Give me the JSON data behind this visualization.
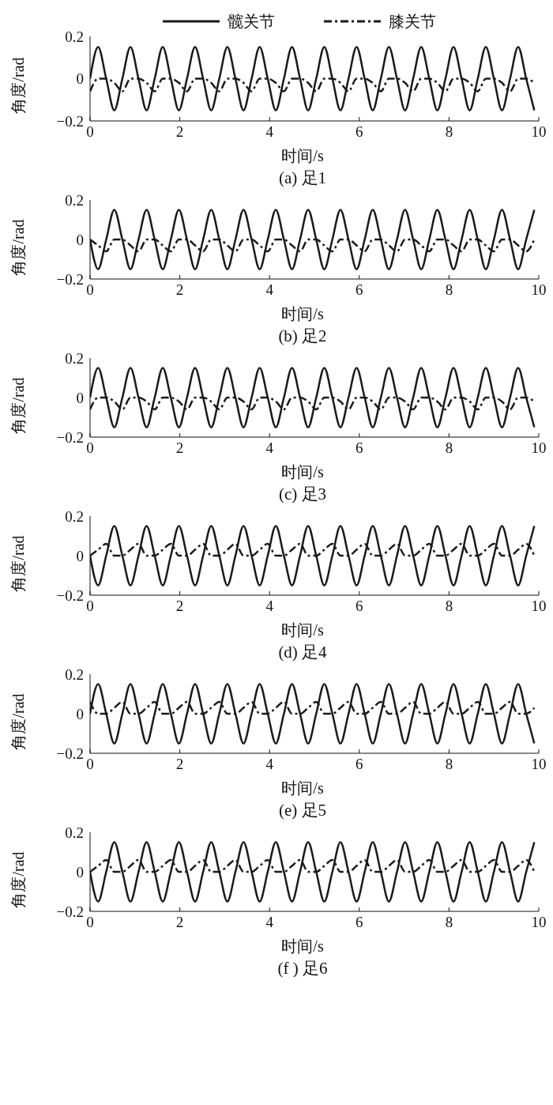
{
  "chart_data": [
    {
      "type": "line",
      "title": "(a)  足1",
      "xlabel": "时间/s",
      "ylabel": "角度/rad",
      "xlim": [
        0,
        10
      ],
      "xticks": [
        0,
        2,
        4,
        6,
        8,
        10
      ],
      "ylim": [
        -0.2,
        0.2
      ],
      "yticks": [
        -0.2,
        0,
        0.2
      ],
      "grid": false,
      "legend": "top",
      "marker": "none",
      "x": [
        0,
        0.18,
        0.36,
        0.54,
        0.72,
        0.9,
        1.08,
        1.26,
        1.44,
        1.62,
        1.8,
        1.98,
        2.16,
        2.34,
        2.52,
        2.7,
        2.88,
        3.06,
        3.24,
        3.42,
        3.6,
        3.78,
        3.96,
        4.14,
        4.32,
        4.5,
        4.68,
        4.86,
        5.04,
        5.22,
        5.4,
        5.58,
        5.76,
        5.94,
        6.12,
        6.3,
        6.48,
        6.66,
        6.84,
        7.02,
        7.2,
        7.38,
        7.56,
        7.74,
        7.92,
        8.1,
        8.28,
        8.46,
        8.64,
        8.82,
        9,
        9.18,
        9.36,
        9.54,
        9.72,
        9.9
      ],
      "series": [
        {
          "name": "髋关节",
          "color": "#1a1a1a",
          "line_style": "solid",
          "values": [
            0,
            0.15,
            0,
            -0.15,
            0,
            0.15,
            0,
            -0.15,
            0,
            0.15,
            0,
            -0.15,
            0,
            0.15,
            0,
            -0.15,
            0,
            0.15,
            0,
            -0.15,
            0,
            0.15,
            0,
            -0.15,
            0,
            0.15,
            0,
            -0.15,
            0,
            0.15,
            0,
            -0.15,
            0,
            0.15,
            0,
            -0.15,
            0,
            0.15,
            0,
            -0.15,
            0,
            0.15,
            0,
            -0.15,
            0,
            0.15,
            0,
            -0.15,
            0,
            0.15,
            0,
            -0.15,
            0,
            0.15,
            0,
            -0.15
          ]
        },
        {
          "name": "膝关节",
          "color": "#1a1a1a",
          "line_style": "dashed",
          "values": [
            -0.06,
            0,
            0,
            -0.02,
            -0.06,
            0,
            0,
            -0.02,
            -0.06,
            0,
            0,
            -0.02,
            -0.06,
            0,
            0,
            -0.02,
            -0.06,
            0,
            0,
            -0.02,
            -0.06,
            0,
            0,
            -0.02,
            -0.06,
            0,
            0,
            -0.02,
            -0.06,
            0,
            0,
            -0.02,
            -0.06,
            0,
            0,
            -0.02,
            -0.06,
            0,
            0,
            -0.02,
            -0.06,
            0,
            0,
            -0.02,
            -0.06,
            0,
            0,
            -0.02,
            -0.06,
            0,
            0,
            -0.02,
            -0.06,
            0,
            0,
            -0.02
          ]
        }
      ]
    },
    {
      "type": "line",
      "title": "(b)  足2",
      "xlabel": "时间/s",
      "ylabel": "角度/rad",
      "xlim": [
        0,
        10
      ],
      "xticks": [
        0,
        2,
        4,
        6,
        8,
        10
      ],
      "ylim": [
        -0.2,
        0.2
      ],
      "yticks": [
        -0.2,
        0,
        0.2
      ],
      "grid": false,
      "legend": false,
      "marker": "none",
      "x": [
        0,
        0.18,
        0.36,
        0.54,
        0.72,
        0.9,
        1.08,
        1.26,
        1.44,
        1.62,
        1.8,
        1.98,
        2.16,
        2.34,
        2.52,
        2.7,
        2.88,
        3.06,
        3.24,
        3.42,
        3.6,
        3.78,
        3.96,
        4.14,
        4.32,
        4.5,
        4.68,
        4.86,
        5.04,
        5.22,
        5.4,
        5.58,
        5.76,
        5.94,
        6.12,
        6.3,
        6.48,
        6.66,
        6.84,
        7.02,
        7.2,
        7.38,
        7.56,
        7.74,
        7.92,
        8.1,
        8.28,
        8.46,
        8.64,
        8.82,
        9,
        9.18,
        9.36,
        9.54,
        9.72,
        9.9
      ],
      "series": [
        {
          "color": "#1a1a1a",
          "line_style": "solid",
          "values": [
            0,
            -0.15,
            0,
            0.15,
            0,
            -0.15,
            0,
            0.15,
            0,
            -0.15,
            0,
            0.15,
            0,
            -0.15,
            0,
            0.15,
            0,
            -0.15,
            0,
            0.15,
            0,
            -0.15,
            0,
            0.15,
            0,
            -0.15,
            0,
            0.15,
            0,
            -0.15,
            0,
            0.15,
            0,
            -0.15,
            0,
            0.15,
            0,
            -0.15,
            0,
            0.15,
            0,
            -0.15,
            0,
            0.15,
            0,
            -0.15,
            0,
            0.15,
            0,
            -0.15,
            0,
            0.15,
            0,
            -0.15,
            0,
            0.15
          ]
        },
        {
          "color": "#1a1a1a",
          "line_style": "dashed",
          "values": [
            0,
            -0.03,
            -0.06,
            0,
            0,
            -0.03,
            -0.06,
            0,
            0,
            -0.03,
            -0.06,
            0,
            0,
            -0.03,
            -0.06,
            0,
            0,
            -0.03,
            -0.06,
            0,
            0,
            -0.03,
            -0.06,
            0,
            0,
            -0.03,
            -0.06,
            0,
            0,
            -0.03,
            -0.06,
            0,
            0,
            -0.03,
            -0.06,
            0,
            0,
            -0.03,
            -0.06,
            0,
            0,
            -0.03,
            -0.06,
            0,
            0,
            -0.03,
            -0.06,
            0,
            0,
            -0.03,
            -0.06,
            0,
            0,
            -0.03,
            -0.06,
            0
          ]
        }
      ]
    },
    {
      "type": "line",
      "title": "(c)  足3",
      "xlabel": "时间/s",
      "ylabel": "角度/rad",
      "xlim": [
        0,
        10
      ],
      "xticks": [
        0,
        2,
        4,
        6,
        8,
        10
      ],
      "ylim": [
        -0.2,
        0.2
      ],
      "yticks": [
        -0.2,
        0,
        0.2
      ],
      "grid": false,
      "legend": false,
      "marker": "none",
      "x": [
        0,
        0.18,
        0.36,
        0.54,
        0.72,
        0.9,
        1.08,
        1.26,
        1.44,
        1.62,
        1.8,
        1.98,
        2.16,
        2.34,
        2.52,
        2.7,
        2.88,
        3.06,
        3.24,
        3.42,
        3.6,
        3.78,
        3.96,
        4.14,
        4.32,
        4.5,
        4.68,
        4.86,
        5.04,
        5.22,
        5.4,
        5.58,
        5.76,
        5.94,
        6.12,
        6.3,
        6.48,
        6.66,
        6.84,
        7.02,
        7.2,
        7.38,
        7.56,
        7.74,
        7.92,
        8.1,
        8.28,
        8.46,
        8.64,
        8.82,
        9,
        9.18,
        9.36,
        9.54,
        9.72,
        9.9
      ],
      "series": [
        {
          "color": "#1a1a1a",
          "line_style": "solid",
          "values": [
            0,
            0.15,
            0,
            -0.15,
            0,
            0.15,
            0,
            -0.15,
            0,
            0.15,
            0,
            -0.15,
            0,
            0.15,
            0,
            -0.15,
            0,
            0.15,
            0,
            -0.15,
            0,
            0.15,
            0,
            -0.15,
            0,
            0.15,
            0,
            -0.15,
            0,
            0.15,
            0,
            -0.15,
            0,
            0.15,
            0,
            -0.15,
            0,
            0.15,
            0,
            -0.15,
            0,
            0.15,
            0,
            -0.15,
            0,
            0.15,
            0,
            -0.15,
            0,
            0.15,
            0,
            -0.15,
            0,
            0.15,
            0,
            -0.15
          ]
        },
        {
          "color": "#1a1a1a",
          "line_style": "dashed",
          "values": [
            -0.06,
            0,
            0,
            -0.02,
            -0.06,
            0,
            0,
            -0.02,
            -0.06,
            0,
            0,
            -0.02,
            -0.06,
            0,
            0,
            -0.02,
            -0.06,
            0,
            0,
            -0.02,
            -0.06,
            0,
            0,
            -0.02,
            -0.06,
            0,
            0,
            -0.02,
            -0.06,
            0,
            0,
            -0.02,
            -0.06,
            0,
            0,
            -0.02,
            -0.06,
            0,
            0,
            -0.02,
            -0.06,
            0,
            0,
            -0.02,
            -0.06,
            0,
            0,
            -0.02,
            -0.06,
            0,
            0,
            -0.02,
            -0.06,
            0,
            0,
            -0.02
          ]
        }
      ]
    },
    {
      "type": "line",
      "title": "(d)  足4",
      "xlabel": "时间/s",
      "ylabel": "角度/rad",
      "xlim": [
        0,
        10
      ],
      "xticks": [
        0,
        2,
        4,
        6,
        8,
        10
      ],
      "ylim": [
        -0.2,
        0.2
      ],
      "yticks": [
        -0.2,
        0,
        0.2
      ],
      "grid": false,
      "legend": false,
      "marker": "none",
      "x": [
        0,
        0.18,
        0.36,
        0.54,
        0.72,
        0.9,
        1.08,
        1.26,
        1.44,
        1.62,
        1.8,
        1.98,
        2.16,
        2.34,
        2.52,
        2.7,
        2.88,
        3.06,
        3.24,
        3.42,
        3.6,
        3.78,
        3.96,
        4.14,
        4.32,
        4.5,
        4.68,
        4.86,
        5.04,
        5.22,
        5.4,
        5.58,
        5.76,
        5.94,
        6.12,
        6.3,
        6.48,
        6.66,
        6.84,
        7.02,
        7.2,
        7.38,
        7.56,
        7.74,
        7.92,
        8.1,
        8.28,
        8.46,
        8.64,
        8.82,
        9,
        9.18,
        9.36,
        9.54,
        9.72,
        9.9
      ],
      "series": [
        {
          "color": "#1a1a1a",
          "line_style": "solid",
          "values": [
            0,
            -0.15,
            0,
            0.15,
            0,
            -0.15,
            0,
            0.15,
            0,
            -0.15,
            0,
            0.15,
            0,
            -0.15,
            0,
            0.15,
            0,
            -0.15,
            0,
            0.15,
            0,
            -0.15,
            0,
            0.15,
            0,
            -0.15,
            0,
            0.15,
            0,
            -0.15,
            0,
            0.15,
            0,
            -0.15,
            0,
            0.15,
            0,
            -0.15,
            0,
            0.15,
            0,
            -0.15,
            0,
            0.15,
            0,
            -0.15,
            0,
            0.15,
            0,
            -0.15,
            0,
            0.15,
            0,
            -0.15,
            0,
            0.15
          ]
        },
        {
          "color": "#1a1a1a",
          "line_style": "dashed",
          "values": [
            0,
            0.03,
            0.06,
            0,
            0,
            0.03,
            0.06,
            0,
            0,
            0.03,
            0.06,
            0,
            0,
            0.03,
            0.06,
            0,
            0,
            0.03,
            0.06,
            0,
            0,
            0.03,
            0.06,
            0,
            0,
            0.03,
            0.06,
            0,
            0,
            0.03,
            0.06,
            0,
            0,
            0.03,
            0.06,
            0,
            0,
            0.03,
            0.06,
            0,
            0,
            0.03,
            0.06,
            0,
            0,
            0.03,
            0.06,
            0,
            0,
            0.03,
            0.06,
            0,
            0,
            0.03,
            0.06,
            0
          ]
        }
      ]
    },
    {
      "type": "line",
      "title": "(e)  足5",
      "xlabel": "时间/s",
      "ylabel": "角度/rad",
      "xlim": [
        0,
        10
      ],
      "xticks": [
        0,
        2,
        4,
        6,
        8,
        10
      ],
      "ylim": [
        -0.2,
        0.2
      ],
      "yticks": [
        -0.2,
        0,
        0.2
      ],
      "grid": false,
      "legend": false,
      "marker": "none",
      "x": [
        0,
        0.18,
        0.36,
        0.54,
        0.72,
        0.9,
        1.08,
        1.26,
        1.44,
        1.62,
        1.8,
        1.98,
        2.16,
        2.34,
        2.52,
        2.7,
        2.88,
        3.06,
        3.24,
        3.42,
        3.6,
        3.78,
        3.96,
        4.14,
        4.32,
        4.5,
        4.68,
        4.86,
        5.04,
        5.22,
        5.4,
        5.58,
        5.76,
        5.94,
        6.12,
        6.3,
        6.48,
        6.66,
        6.84,
        7.02,
        7.2,
        7.38,
        7.56,
        7.74,
        7.92,
        8.1,
        8.28,
        8.46,
        8.64,
        8.82,
        9,
        9.18,
        9.36,
        9.54,
        9.72,
        9.9
      ],
      "series": [
        {
          "color": "#1a1a1a",
          "line_style": "solid",
          "values": [
            0,
            0.15,
            0,
            -0.15,
            0,
            0.15,
            0,
            -0.15,
            0,
            0.15,
            0,
            -0.15,
            0,
            0.15,
            0,
            -0.15,
            0,
            0.15,
            0,
            -0.15,
            0,
            0.15,
            0,
            -0.15,
            0,
            0.15,
            0,
            -0.15,
            0,
            0.15,
            0,
            -0.15,
            0,
            0.15,
            0,
            -0.15,
            0,
            0.15,
            0,
            -0.15,
            0,
            0.15,
            0,
            -0.15,
            0,
            0.15,
            0,
            -0.15,
            0,
            0.15,
            0,
            -0.15,
            0,
            0.15,
            0,
            -0.15
          ]
        },
        {
          "color": "#1a1a1a",
          "line_style": "dashed",
          "values": [
            0.06,
            0,
            0,
            0.03,
            0.06,
            0,
            0,
            0.03,
            0.06,
            0,
            0,
            0.03,
            0.06,
            0,
            0,
            0.03,
            0.06,
            0,
            0,
            0.03,
            0.06,
            0,
            0,
            0.03,
            0.06,
            0,
            0,
            0.03,
            0.06,
            0,
            0,
            0.03,
            0.06,
            0,
            0,
            0.03,
            0.06,
            0,
            0,
            0.03,
            0.06,
            0,
            0,
            0.03,
            0.06,
            0,
            0,
            0.03,
            0.06,
            0,
            0,
            0.03,
            0.06,
            0,
            0,
            0.03
          ]
        }
      ]
    },
    {
      "type": "line",
      "title": "(f )  足6",
      "xlabel": "时间/s",
      "ylabel": "角度/rad",
      "xlim": [
        0,
        10
      ],
      "xticks": [
        0,
        2,
        4,
        6,
        8,
        10
      ],
      "ylim": [
        -0.2,
        0.2
      ],
      "yticks": [
        -0.2,
        0,
        0.2
      ],
      "grid": false,
      "legend": false,
      "marker": "none",
      "x": [
        0,
        0.18,
        0.36,
        0.54,
        0.72,
        0.9,
        1.08,
        1.26,
        1.44,
        1.62,
        1.8,
        1.98,
        2.16,
        2.34,
        2.52,
        2.7,
        2.88,
        3.06,
        3.24,
        3.42,
        3.6,
        3.78,
        3.96,
        4.14,
        4.32,
        4.5,
        4.68,
        4.86,
        5.04,
        5.22,
        5.4,
        5.58,
        5.76,
        5.94,
        6.12,
        6.3,
        6.48,
        6.66,
        6.84,
        7.02,
        7.2,
        7.38,
        7.56,
        7.74,
        7.92,
        8.1,
        8.28,
        8.46,
        8.64,
        8.82,
        9,
        9.18,
        9.36,
        9.54,
        9.72,
        9.9
      ],
      "series": [
        {
          "color": "#1a1a1a",
          "line_style": "solid",
          "values": [
            0,
            -0.15,
            0,
            0.15,
            0,
            -0.15,
            0,
            0.15,
            0,
            -0.15,
            0,
            0.15,
            0,
            -0.15,
            0,
            0.15,
            0,
            -0.15,
            0,
            0.15,
            0,
            -0.15,
            0,
            0.15,
            0,
            -0.15,
            0,
            0.15,
            0,
            -0.15,
            0,
            0.15,
            0,
            -0.15,
            0,
            0.15,
            0,
            -0.15,
            0,
            0.15,
            0,
            -0.15,
            0,
            0.15,
            0,
            -0.15,
            0,
            0.15,
            0,
            -0.15,
            0,
            0.15,
            0,
            -0.15,
            0,
            0.15
          ]
        },
        {
          "color": "#1a1a1a",
          "line_style": "dashed",
          "values": [
            0,
            0.03,
            0.06,
            0,
            0,
            0.03,
            0.06,
            0,
            0,
            0.03,
            0.06,
            0,
            0,
            0.03,
            0.06,
            0,
            0,
            0.03,
            0.06,
            0,
            0,
            0.03,
            0.06,
            0,
            0,
            0.03,
            0.06,
            0,
            0,
            0.03,
            0.06,
            0,
            0,
            0.03,
            0.06,
            0,
            0,
            0.03,
            0.06,
            0,
            0,
            0.03,
            0.06,
            0,
            0,
            0.03,
            0.06,
            0,
            0,
            0.03,
            0.06,
            0,
            0,
            0.03,
            0.06,
            0
          ]
        }
      ]
    }
  ]
}
